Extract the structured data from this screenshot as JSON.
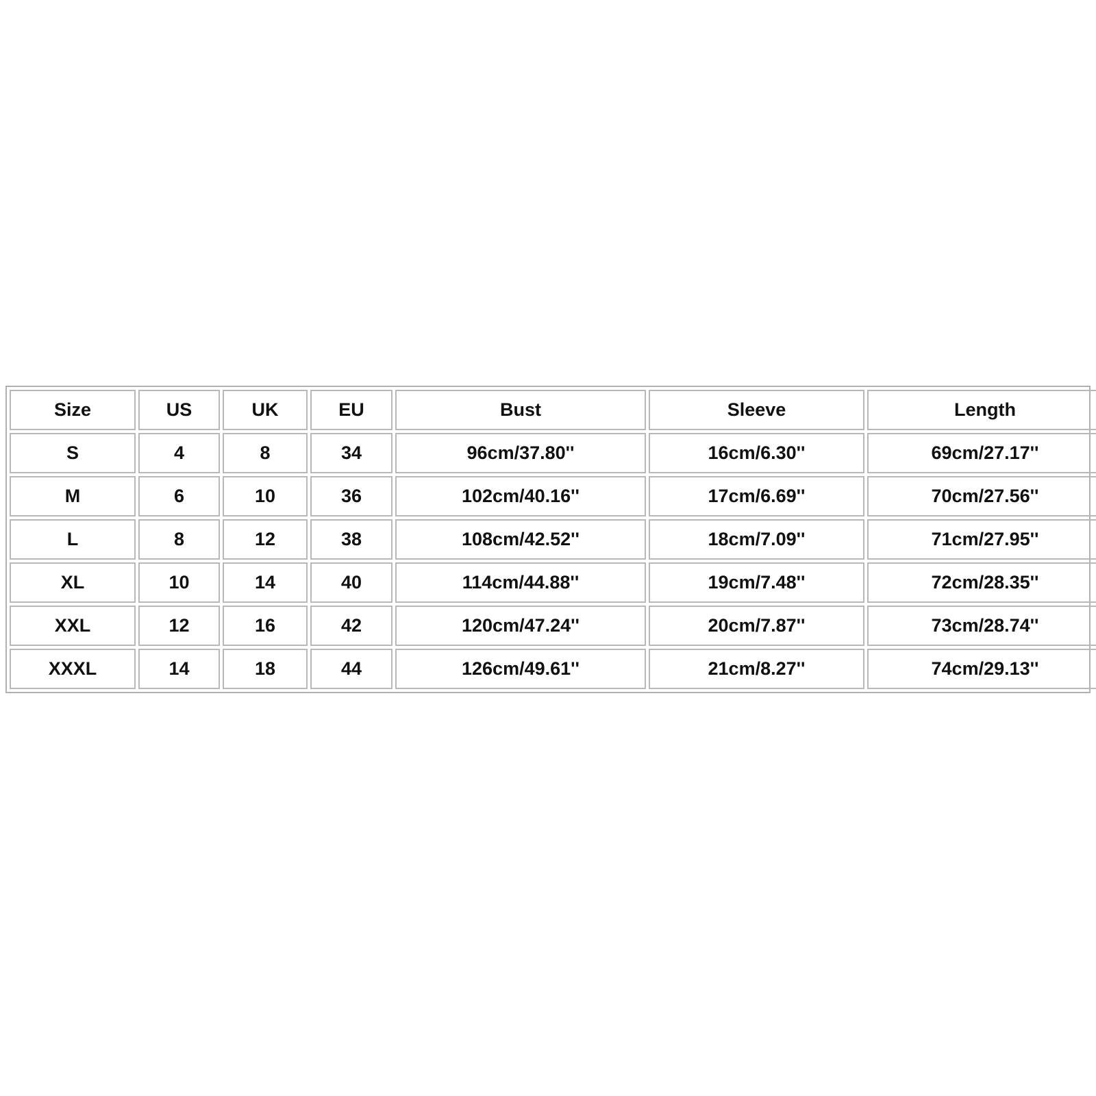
{
  "table": {
    "header": [
      "Size",
      "US",
      "UK",
      "EU",
      "Bust",
      "Sleeve",
      "Length"
    ],
    "rows": [
      [
        "S",
        "4",
        "8",
        "34",
        "96cm/37.80''",
        "16cm/6.30''",
        "69cm/27.17''"
      ],
      [
        "M",
        "6",
        "10",
        "36",
        "102cm/40.16''",
        "17cm/6.69''",
        "70cm/27.56''"
      ],
      [
        "L",
        "8",
        "12",
        "38",
        "108cm/42.52''",
        "18cm/7.09''",
        "71cm/27.95''"
      ],
      [
        "XL",
        "10",
        "14",
        "40",
        "114cm/44.88''",
        "19cm/7.48''",
        "72cm/28.35''"
      ],
      [
        "XXL",
        "12",
        "16",
        "42",
        "120cm/47.24''",
        "20cm/7.87''",
        "73cm/28.74''"
      ],
      [
        "XXXL",
        "14",
        "18",
        "44",
        "126cm/49.61''",
        "21cm/8.27''",
        "74cm/29.13''"
      ]
    ]
  }
}
